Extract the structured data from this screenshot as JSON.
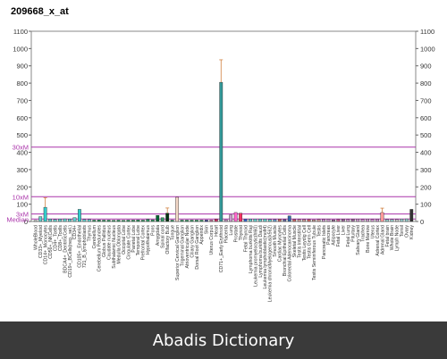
{
  "chart_data": {
    "type": "bar",
    "title": "209668_x_at",
    "ylim": [
      0,
      1100
    ],
    "yticks": [
      0,
      100,
      200,
      300,
      400,
      500,
      600,
      700,
      800,
      900,
      1000,
      1100
    ],
    "ref_lines": [
      {
        "label": "30xM",
        "value": 430,
        "color": "#aa33aa"
      },
      {
        "label": "10xM",
        "value": 143,
        "color": "#aa33aa"
      },
      {
        "label": "3xM",
        "value": 43,
        "color": "#aa33aa"
      },
      {
        "label": "Median",
        "value": 14,
        "color": "#aa33aa"
      }
    ],
    "categories": [
      "WholeBlood",
      "CD33+_Myeloid",
      "CD14+_Monocytes",
      "CD56+_NKCells",
      "CD4+_Tcells",
      "CD8+_Tcells",
      "BDCA4+_DentriticCells",
      "CD19+_BCells(neg._sel.)",
      "CD34+",
      "CD105+_Endothelial",
      "721_B_lymphoblasts",
      "Thymus",
      "Cerebellum",
      "Cerebellum Peduncles",
      "Globus Pallidus",
      "Caudate nucleus",
      "Subthalamic Nucleus",
      "Medulla Oblongata",
      "Occipital Lobe",
      "Cingulate Cortex",
      "Parietal Lobe",
      "Temporal Lobe",
      "Prefrontal Cortex",
      "Hypothalamus",
      "Pons",
      "Amygdala",
      "Spinal cord",
      "Olfactory Bulb",
      "Tongue",
      "Superior Cervical Ganglion",
      "Trigeminal Ganglion",
      "Atrioventricular Node",
      "Ciliary Ganglion",
      "Dorsal Root Ganglion",
      "Appendix",
      "Skin",
      "Uterus Corpus",
      "Heart",
      "CD71+_Early Erythroid",
      "Placenta",
      "Lung",
      "Prostate",
      "Thyroid",
      "Fetal Thyroid",
      "Lymphoma burkitts Raji",
      "Leukemia promyelocytic(hl60)",
      "Lymphoma burkitts Daudi",
      "Leukemia lymphoblastic(molt4)",
      "Leukemia chronicMyelogenous(k562)",
      "Smooth Muscle",
      "Cardiac Myocytes",
      "Bronchial Epithelial Cells",
      "Colorectal Adenocarcinoma",
      "Skeletal Muscle",
      "Testis Interstitial",
      "Testis Leydig Cell",
      "Testis Germ Cell",
      "Testis Seminiferous Tubule",
      "Testis",
      "Pancreatic Islets",
      "Pancreas",
      "Adipocyte",
      "Fetal Liver",
      "Liver",
      "Fetal Lung",
      "Pituitary",
      "Salivary Gland",
      "Trachea",
      "Bone Marrow",
      "Uterus",
      "Adrenal Cortex",
      "Adrenal Gland",
      "Fetal brain",
      "Whole Brain",
      "Lymph Node",
      "Tonsil",
      "Ovary",
      "Kidney"
    ],
    "values": [
      6,
      28,
      82,
      14,
      12,
      14,
      15,
      14,
      22,
      70,
      12,
      12,
      8,
      9,
      8,
      8,
      7,
      8,
      7,
      8,
      8,
      9,
      8,
      13,
      10,
      35,
      22,
      48,
      8,
      140,
      8,
      8,
      8,
      8,
      8,
      8,
      8,
      14,
      805,
      10,
      38,
      52,
      48,
      14,
      14,
      14,
      14,
      14,
      12,
      12,
      14,
      12,
      32,
      12,
      12,
      12,
      12,
      10,
      12,
      12,
      13,
      10,
      12,
      14,
      12,
      14,
      14,
      12,
      14,
      12,
      13,
      52,
      12,
      12,
      12,
      14,
      15,
      70
    ],
    "colors": [
      "#d4d4d4",
      "#66cccc",
      "#33cccc",
      "#66cccc",
      "#66cccc",
      "#66cccc",
      "#66cccc",
      "#66cccc",
      "#66cccc",
      "#33cccc",
      "#66cccc",
      "#66cccc",
      "#339966",
      "#339966",
      "#339966",
      "#339966",
      "#339966",
      "#339966",
      "#339966",
      "#339966",
      "#339966",
      "#339966",
      "#339966",
      "#339966",
      "#339966",
      "#006633",
      "#339966",
      "#003311",
      "#339966",
      "#f4d8c8",
      "#339966",
      "#339966",
      "#339966",
      "#339966",
      "#339966",
      "#333399",
      "#cc6699",
      "#cc3366",
      "#339999",
      "#cc99cc",
      "#cc99cc",
      "#ff66cc",
      "#ff3366",
      "#3366cc",
      "#66cccc",
      "#66cccc",
      "#66cccc",
      "#66cccc",
      "#66cccc",
      "#6699cc",
      "#cc6666",
      "#666699",
      "#3366aa",
      "#cc6666",
      "#cc9999",
      "#cc9999",
      "#cc6666",
      "#cc9999",
      "#cc9999",
      "#cc99cc",
      "#cc99cc",
      "#996699",
      "#cc6699",
      "#996699",
      "#cc99cc",
      "#996699",
      "#cc99cc",
      "#cc99cc",
      "#cc99cc",
      "#cc99cc",
      "#cc99cc",
      "#ff9999",
      "#99cccc",
      "#99cccc",
      "#cccccc",
      "#99cccc",
      "#99cccc",
      "#333333"
    ],
    "errors": [
      0,
      0,
      55,
      0,
      0,
      0,
      0,
      0,
      0,
      0,
      0,
      0,
      0,
      0,
      0,
      0,
      0,
      0,
      0,
      0,
      0,
      0,
      0,
      0,
      0,
      0,
      0,
      30,
      0,
      0,
      0,
      0,
      0,
      0,
      0,
      0,
      0,
      0,
      130,
      0,
      0,
      0,
      0,
      0,
      0,
      0,
      0,
      0,
      0,
      0,
      0,
      0,
      0,
      0,
      0,
      0,
      0,
      0,
      0,
      0,
      0,
      0,
      0,
      0,
      0,
      0,
      0,
      0,
      0,
      0,
      0,
      25,
      0,
      0,
      0,
      0,
      0,
      0
    ]
  },
  "footer": {
    "text": "Abadis Dictionary"
  }
}
